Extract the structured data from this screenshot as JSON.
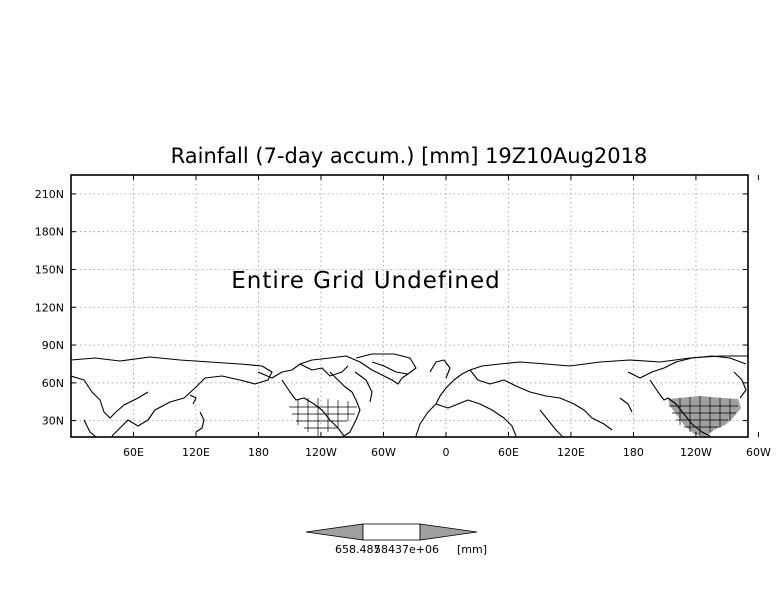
{
  "chart_data": {
    "type": "heatmap",
    "title": "Rainfall (7-day accum.) [mm] 19Z10Aug2018",
    "annotation": "Entire Grid Undefined",
    "x_ticks": [
      "60E",
      "120E",
      "180",
      "120W",
      "60W",
      "0",
      "60E",
      "120E",
      "180",
      "120W",
      "60W"
    ],
    "y_ticks": [
      "30N",
      "60N",
      "90N",
      "120N",
      "150N",
      "180N",
      "210N"
    ],
    "xlim": [
      0,
      650
    ],
    "ylim": [
      17,
      225
    ],
    "grid": true,
    "colorbar": {
      "labels": [
        "658.487",
        "58437e+06",
        "[mm]"
      ],
      "colors": [
        "#a0a0a0",
        "#ffffff",
        "#a0a0a0"
      ]
    },
    "colors": {
      "land_fill_usa": "#a0a0a0",
      "coastline": "#000000",
      "grid": "#9a9a9a"
    }
  }
}
